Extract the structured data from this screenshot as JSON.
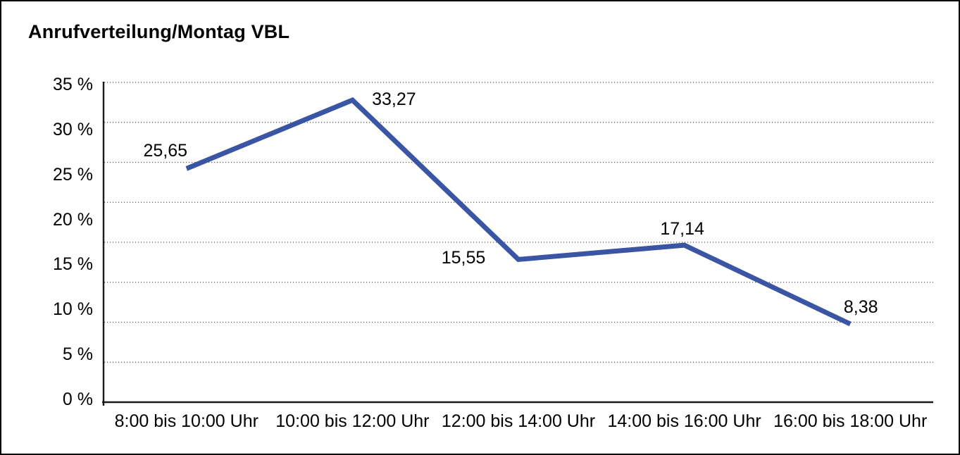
{
  "window": {
    "title": "Anrufverteilung/Montag VBL"
  },
  "chart_data": {
    "type": "line",
    "title": "Anrufverteilung/Montag VBL",
    "categories": [
      "8:00 bis 10:00 Uhr",
      "10:00 bis 12:00 Uhr",
      "12:00 bis 14:00 Uhr",
      "14:00 bis 16:00 Uhr",
      "16:00 bis 18:00 Uhr"
    ],
    "values": [
      25.65,
      33.27,
      15.55,
      17.14,
      8.38
    ],
    "point_labels": [
      "25,65",
      "33,27",
      "15,55",
      "17,14",
      "8,38"
    ],
    "xlabel": "",
    "ylabel": "",
    "ylim": [
      0,
      35
    ],
    "ytick_step": 5,
    "ytick_labels": [
      "0 %",
      "5 %",
      "10 %",
      "15 %",
      "20 %",
      "25 %",
      "30 %",
      "35 %"
    ],
    "grid": "horizontal-dotted",
    "gridline_intervals": 8,
    "legend_position": "none",
    "line_color": "#3A55A3",
    "axis_color": "#1a1a1a",
    "gridline_color": "#555555",
    "text_color": "#000000",
    "background_color": "#ffffff",
    "frame_border_color": "#000000"
  }
}
